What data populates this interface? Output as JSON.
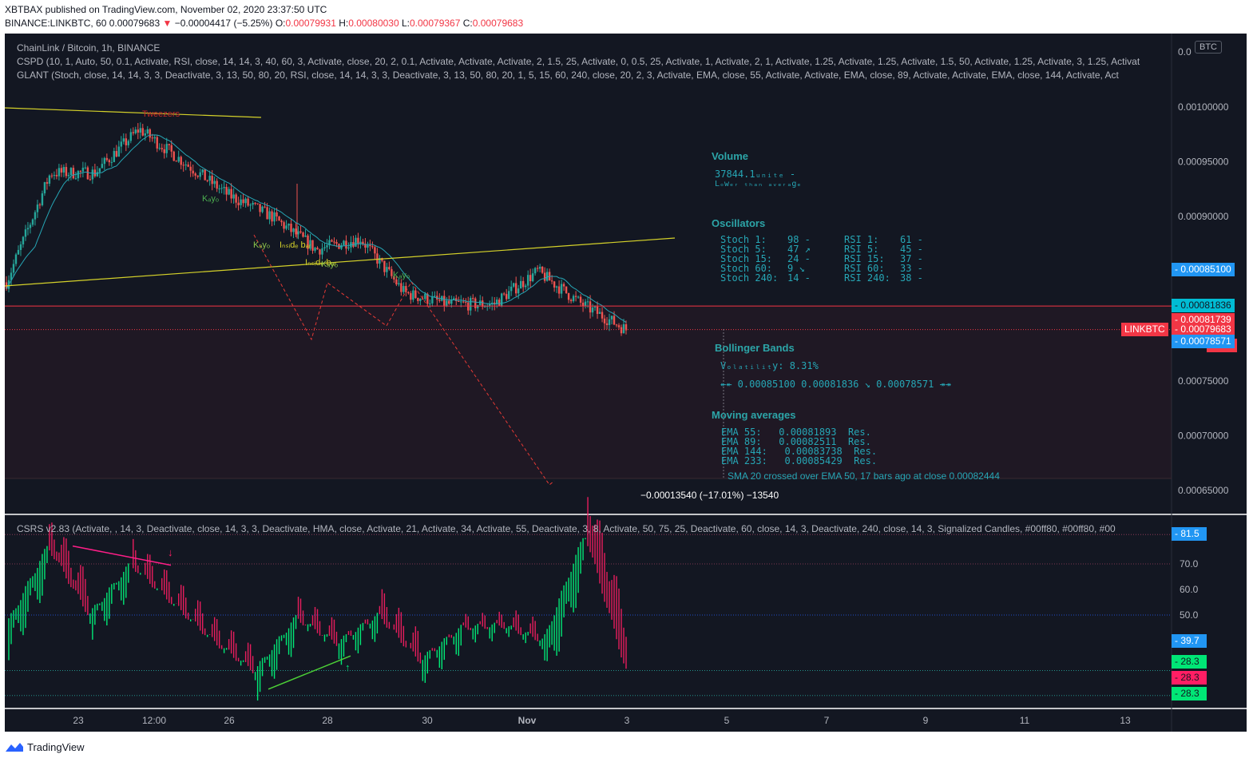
{
  "header": {
    "line1": "XBTBAX published on TradingView.com, November 02, 2020 23:37:50 UTC",
    "symbol": "BINANCE:LINKBTC, 60",
    "last": "0.00079683",
    "arrow": "▼",
    "change": "−0.00004417 (−5.25%)",
    "o_label": "O:",
    "o_val": "0.00079931",
    "h_label": "H:",
    "h_val": "0.00080030",
    "l_label": "L:",
    "l_val": "0.00079367",
    "c_label": "C:",
    "c_val": "0.00079683"
  },
  "indicators": {
    "title": "ChainLink / Bitcoin, 1h, BINANCE",
    "cspd": "CSPD (10, 1, Auto, 50, 0.1, Activate, RSI, close, 14, 14, 3, 40, 60, 3, Activate, close, 20, 2, 0.1, Activate, Activate, Activate, 2, 1.5, 25, Activate, 0, 0.5, 25, Activate, 1, Activate, 2, 1, Activate, 1.25, Activate, 1.25, Activate, 1.5, 50, Activate, 1.25, Activate, 3, 1.25, Activat",
    "glant": "GLANT (Stoch, close, 14, 14, 3, 3, Deactivate, 3, 13, 50, 80, 20, RSI, close, 14, 14, 3, 3, Deactivate, 3, 13, 50, 80, 20, 1, 5, 15, 60, 240, close, 20, 2, 3, Activate, EMA, close, 55, Activate, Activate, EMA, close, 89, Activate, Activate, EMA, close, 144, Activate, Act",
    "csrs": "CSRS v2.83 (Activate, , 14, 3, Deactivate, close, 14, 3, 3, Deactivate, HMA, close, Activate, 21, Activate, 34, Activate, 55, Deactivate, 3, 8, Activate, 50, 75, 25, Deactivate, 60, close, 14, 3, Deactivate, 240, close, 14, 3, Signalized Candles, #00ff80, #00ff80, #00"
  },
  "currency_label": "BTC",
  "panel": {
    "volume_title": "Volume",
    "volume_value": "37844.1ᵤₙᵢₜₑ -",
    "volume_note": "Lₒwₑᵣ ₜₕₐₙ ₐᵥₑᵣₐgₑ",
    "osc_title": "Oscillators",
    "osc_rows": [
      {
        "s": "Stoch 1:",
        "sv": "98 -",
        "r": "RSI 1:",
        "rv": "61 -"
      },
      {
        "s": "Stoch 5:",
        "sv": "47 ↗",
        "r": "RSI 5:",
        "rv": "45 -"
      },
      {
        "s": "Stoch 15:",
        "sv": "24 -",
        "r": "RSI 15:",
        "rv": "37 -"
      },
      {
        "s": "Stoch 60:",
        "sv": "9 ↘",
        "r": "RSI 60:",
        "rv": "33 -"
      },
      {
        "s": "Stoch 240:",
        "sv": "14 -",
        "r": "RSI 240:",
        "rv": "38 -"
      }
    ],
    "bb_title": "Bollinger Bands",
    "bb_vol": "Vₒₗₐₜᵢₗᵢₜy:  8.31%",
    "bb_vals": "↞↞ 0.00085100   0.00081836 ↘   0.00078571 ↠↠",
    "ma_title": "Moving averages",
    "ma_rows": [
      "EMA 55:   0.00081893  Res.",
      "EMA 89:   0.00082511  Res.",
      "EMA 144:   0.00083738  Res.",
      "EMA 233:   0.00085429  Res."
    ],
    "sma_note": "SMA 20 crossed over EMA 50, 17 bars ago at close 0.00082444",
    "measure": "−0.00013540 (−17.01%) −13540"
  },
  "annotations": {
    "tweezers": "Tweezers",
    "kayo": "Kₐyₒ",
    "inside_bar": "Iₙₛᵢdₑ bₐᵣ"
  },
  "price_labels": [
    {
      "text": "0.00085100",
      "color": "#2196f3",
      "fg": "#ffffff"
    },
    {
      "text": "0.00081836",
      "color": "#00bcd4",
      "fg": "#131722"
    },
    {
      "text": "0.00081739",
      "color": "#f23645",
      "fg": "#ffffff"
    },
    {
      "text": "0.00079683",
      "color": "#f23645",
      "fg": "#ffffff"
    },
    {
      "text": "22:13",
      "color": "#f23645",
      "fg": "#ffffff"
    },
    {
      "text": "0.00078571",
      "color": "#2196f3",
      "fg": "#ffffff"
    }
  ],
  "symbol_tag": "LINKBTC",
  "lower_labels": [
    {
      "text": "81.5",
      "color": "#2196f3"
    },
    {
      "text": "39.7",
      "color": "#2196f3"
    },
    {
      "text": "28.3",
      "color": "#00e676"
    },
    {
      "text": "28.3",
      "color": "#ff1e64"
    },
    {
      "text": "28.3",
      "color": "#00e676"
    }
  ],
  "colors": {
    "bg": "#131722",
    "up": "#26a69a",
    "down": "#ef5350",
    "trend": "#d4d12a",
    "teal": "#26a6b5",
    "green": "#00ff80",
    "pink": "#ff1e64"
  },
  "chart_data": [
    {
      "type": "candlestick",
      "title": "ChainLink / Bitcoin, 1h, BINANCE",
      "ylim": [
        0.00062,
        0.00103
      ],
      "y_ticks": [
        "0.00100000",
        "0.00095000",
        "0.00090000",
        "0.00075000",
        "0.00070000",
        "0.00065000"
      ],
      "x_ticks": [
        "23",
        "12:00",
        "26",
        "28",
        "30",
        "Nov",
        "3",
        "5",
        "7",
        "9",
        "11",
        "13"
      ],
      "approx_close_path": {
        "x": [
          "Oct 22 00:00",
          "Oct 23 00:00",
          "Oct 24 00:00",
          "Oct 24 12:00",
          "Oct 25 12:00",
          "Oct 26 12:00",
          "Oct 27 12:00",
          "Oct 28 12:00",
          "Oct 29 12:00",
          "Oct 30 12:00",
          "Oct 31 12:00",
          "Nov 1 12:00",
          "Nov 2 00:00",
          "Nov 2 12:00",
          "Nov 2 22:00"
        ],
        "y": [
          0.00084,
          0.00094,
          0.00094,
          0.00098,
          0.00095,
          0.00092,
          0.0009,
          0.00087,
          0.00088,
          0.00083,
          0.00082,
          0.00082,
          0.00085,
          0.00082,
          0.00079683
        ]
      },
      "last_price": 0.00079683,
      "horizontal_line": 0.00081836
    },
    {
      "type": "line",
      "title": "CSRS v2.83",
      "y_ticks": [
        "70.0",
        "60.0",
        "50.0"
      ],
      "levels": [
        81.5,
        70,
        50,
        39.7,
        28.3
      ],
      "approx_series": {
        "x": [
          "Oct 22 00:00",
          "Oct 23 00:00",
          "Oct 23 12:00",
          "Oct 24 06:00",
          "Oct 25 00:00",
          "Oct 26 06:00",
          "Oct 27 00:00",
          "Oct 28 00:00",
          "Oct 28 12:00",
          "Oct 29 12:00",
          "Oct 30 00:00",
          "Oct 31 00:00",
          "Nov 1 00:00",
          "Nov 1 12:00",
          "Nov 2 00:00",
          "Nov 2 22:00"
        ],
        "y": [
          46,
          77,
          50,
          70,
          55,
          40,
          28,
          49,
          39,
          50,
          32,
          45,
          46,
          40,
          82,
          28.3
        ]
      }
    }
  ]
}
